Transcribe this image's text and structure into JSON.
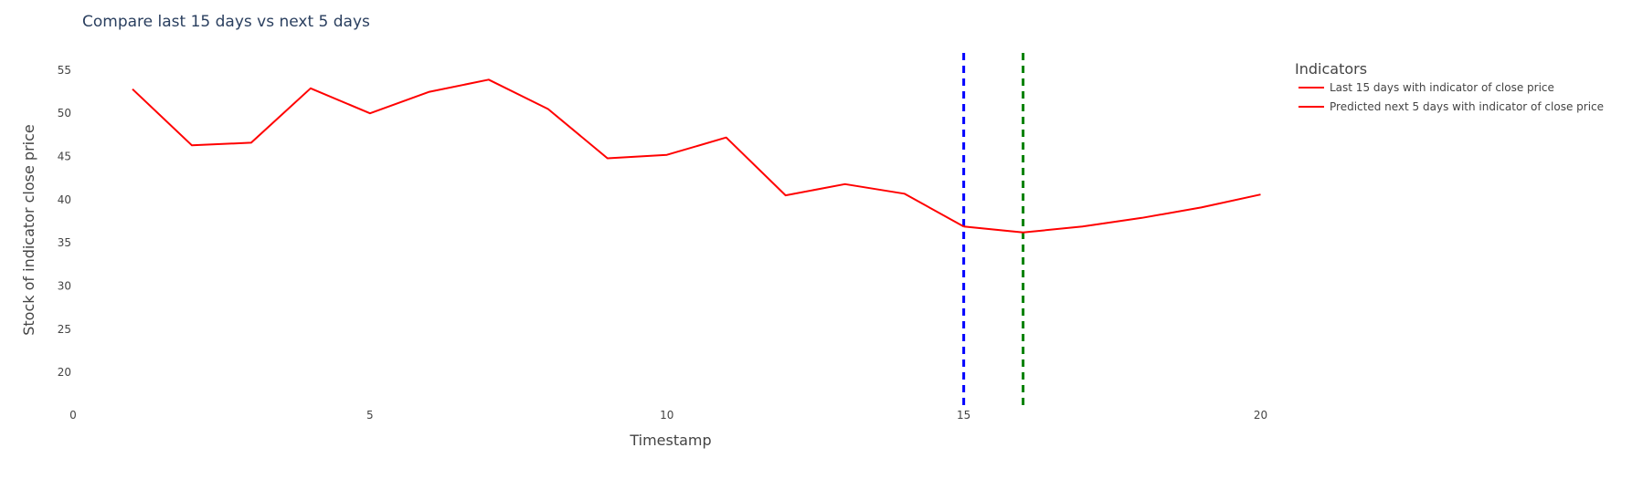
{
  "chart_data": {
    "type": "line",
    "title": "Compare last 15 days vs next 5 days",
    "xlabel": "Timestamp",
    "ylabel": "Stock of indicator close price",
    "xlim": [
      0,
      20.5
    ],
    "ylim": [
      16,
      57
    ],
    "xticks": [
      0,
      5,
      10,
      15,
      20
    ],
    "yticks": [
      20,
      25,
      30,
      35,
      40,
      45,
      50,
      55
    ],
    "grid": false,
    "legend": {
      "title": "Indicators",
      "placement": "top-right, outside plot",
      "entries": [
        "Last 15 days with indicator of close price",
        "Predicted next 5 days with indicator of close price"
      ]
    },
    "series": [
      {
        "name": "Last 15 days with indicator of close price",
        "color": "#ff0000",
        "x": [
          1,
          2,
          3,
          4,
          5,
          6,
          7,
          8,
          9,
          10,
          11,
          12,
          13,
          14,
          15
        ],
        "y": [
          52.8,
          46.3,
          46.6,
          52.9,
          50.0,
          52.5,
          53.9,
          50.5,
          44.8,
          45.2,
          47.2,
          40.5,
          41.8,
          40.7,
          36.9
        ]
      },
      {
        "name": "Predicted next 5 days with indicator of close price",
        "color": "#ff0000",
        "x": [
          15,
          16,
          17,
          18,
          19,
          20
        ],
        "y": [
          36.9,
          36.2,
          36.9,
          37.9,
          39.1,
          40.6
        ]
      }
    ],
    "vertical_lines": [
      {
        "x": 15,
        "color": "#0000ff",
        "style": "dashed"
      },
      {
        "x": 16,
        "color": "#008000",
        "style": "dashed"
      }
    ]
  }
}
